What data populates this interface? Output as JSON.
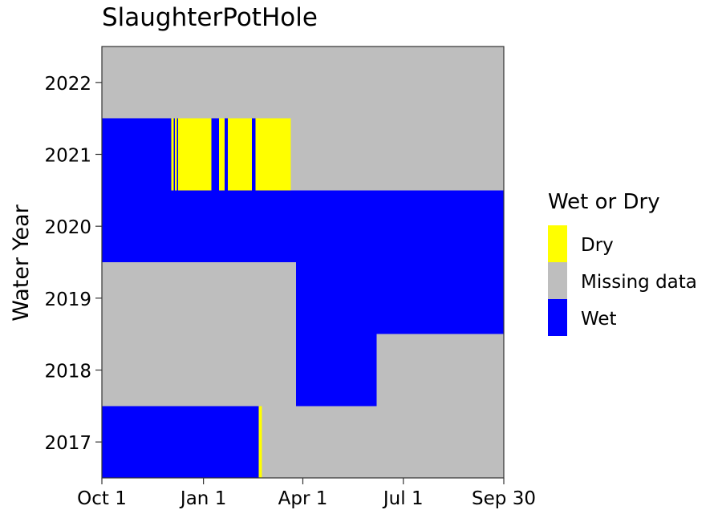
{
  "chart_data": {
    "type": "heatmap",
    "title": "SlaughterPotHole",
    "xlabel": "",
    "ylabel": "Water Year",
    "x_ticks": [
      {
        "day": 1,
        "label": "Oct 1"
      },
      {
        "day": 93,
        "label": "Jan 1"
      },
      {
        "day": 183,
        "label": "Apr 1"
      },
      {
        "day": 274,
        "label": "Jul 1"
      },
      {
        "day": 365,
        "label": "Sep 30"
      }
    ],
    "xlim": [
      1,
      365
    ],
    "years": [
      "2017",
      "2018",
      "2019",
      "2020",
      "2021",
      "2022"
    ],
    "legend": {
      "title": "Wet or Dry",
      "position": "right",
      "entries": [
        {
          "key": "dry",
          "label": "Dry",
          "color": "#ffff00"
        },
        {
          "key": "missing",
          "label": "Missing data",
          "color": "#bebebe"
        },
        {
          "key": "wet",
          "label": "Wet",
          "color": "#0000ff"
        }
      ]
    },
    "colors": {
      "dry": "#ffff00",
      "missing": "#bebebe",
      "wet": "#0000ff",
      "panel_border": "#333333"
    },
    "segments": [
      {
        "year": "2017",
        "start_day": 1,
        "end_day": 143,
        "status": "wet"
      },
      {
        "year": "2017",
        "start_day": 143,
        "end_day": 146,
        "status": "dry"
      },
      {
        "year": "2017",
        "start_day": 146,
        "end_day": 365,
        "status": "missing"
      },
      {
        "year": "2018",
        "start_day": 1,
        "end_day": 177,
        "status": "missing"
      },
      {
        "year": "2018",
        "start_day": 177,
        "end_day": 250,
        "status": "wet"
      },
      {
        "year": "2018",
        "start_day": 250,
        "end_day": 365,
        "status": "missing"
      },
      {
        "year": "2019",
        "start_day": 1,
        "end_day": 177,
        "status": "missing"
      },
      {
        "year": "2019",
        "start_day": 177,
        "end_day": 365,
        "status": "wet"
      },
      {
        "year": "2020",
        "start_day": 1,
        "end_day": 365,
        "status": "wet"
      },
      {
        "year": "2021",
        "start_day": 1,
        "end_day": 64,
        "status": "wet"
      },
      {
        "year": "2021",
        "start_day": 64,
        "end_day": 66,
        "status": "dry"
      },
      {
        "year": "2021",
        "start_day": 66,
        "end_day": 67,
        "status": "wet"
      },
      {
        "year": "2021",
        "start_day": 67,
        "end_day": 69,
        "status": "dry"
      },
      {
        "year": "2021",
        "start_day": 69,
        "end_day": 70,
        "status": "wet"
      },
      {
        "year": "2021",
        "start_day": 70,
        "end_day": 100,
        "status": "dry"
      },
      {
        "year": "2021",
        "start_day": 100,
        "end_day": 107,
        "status": "wet"
      },
      {
        "year": "2021",
        "start_day": 107,
        "end_day": 112,
        "status": "dry"
      },
      {
        "year": "2021",
        "start_day": 112,
        "end_day": 115,
        "status": "wet"
      },
      {
        "year": "2021",
        "start_day": 115,
        "end_day": 137,
        "status": "dry"
      },
      {
        "year": "2021",
        "start_day": 137,
        "end_day": 140,
        "status": "wet"
      },
      {
        "year": "2021",
        "start_day": 140,
        "end_day": 172,
        "status": "dry"
      },
      {
        "year": "2021",
        "start_day": 172,
        "end_day": 365,
        "status": "missing"
      },
      {
        "year": "2022",
        "start_day": 1,
        "end_day": 365,
        "status": "missing"
      }
    ]
  }
}
